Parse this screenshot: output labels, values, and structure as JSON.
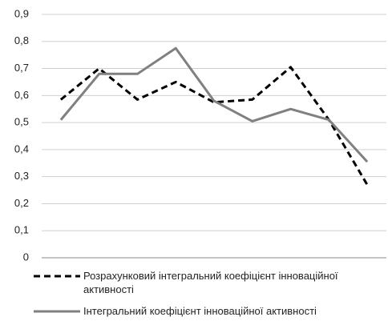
{
  "chart_data": {
    "type": "line",
    "categories": [
      null,
      null,
      null,
      null,
      null,
      null,
      null,
      null,
      null
    ],
    "series": [
      {
        "name": "Розрахунковий інтегральний коефіцієнт інноваційної активності",
        "color": "#000000",
        "dash": true,
        "values": [
          0.585,
          0.7,
          0.585,
          0.65,
          0.575,
          0.585,
          0.705,
          0.51,
          0.27
        ]
      },
      {
        "name": "Інтегральний коефіцієнт інноваційної активності",
        "color": "#808080",
        "dash": false,
        "values": [
          0.51,
          0.68,
          0.68,
          0.775,
          0.58,
          0.505,
          0.55,
          0.51,
          0.355
        ]
      }
    ],
    "ylim": [
      0,
      0.9
    ],
    "yticks": [
      0,
      {
        "value": 0.1,
        "label": "0,1"
      },
      {
        "value": 0.2,
        "label": "0,2"
      },
      {
        "value": 0.3,
        "label": "0,3"
      },
      {
        "value": 0.4,
        "label": "0,4"
      },
      {
        "value": 0.5,
        "label": "0,5"
      },
      {
        "value": 0.6,
        "label": "0,6"
      },
      {
        "value": 0.7,
        "label": "0,7"
      },
      {
        "value": 0.8,
        "label": "0,8"
      },
      {
        "value": 0.9,
        "label": "0,9"
      }
    ],
    "grid": true,
    "legend": "bottom"
  }
}
